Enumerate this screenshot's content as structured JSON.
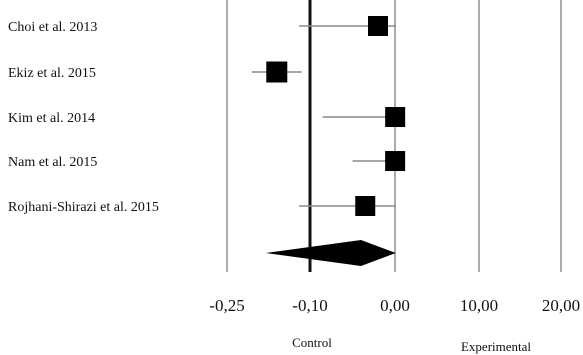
{
  "chart_data": {
    "type": "forest",
    "studies": [
      {
        "label": "Choi et al. 2013",
        "estimate": -0.02,
        "ci_low": -0.12,
        "ci_high": 0.12
      },
      {
        "label": "Ekiz et al. 2015",
        "estimate": -0.16,
        "ci_low": -0.205,
        "ci_high": -0.115
      },
      {
        "label": "Kim et al. 2014",
        "estimate": 0.02,
        "ci_low": -0.085,
        "ci_high": 0.26
      },
      {
        "label": "Nam et al. 2015",
        "estimate": 0.015,
        "ci_low": -0.05,
        "ci_high": 0.12
      },
      {
        "label": "Rojhani-Shirazi et al. 2015",
        "estimate": -0.035,
        "ci_low": -0.12,
        "ci_high": 0.11
      }
    ],
    "pooled": {
      "estimate": -0.04,
      "ci_low": -0.18,
      "ci_high": 0.1
    },
    "x_ticks": [
      "-0,25",
      "-0,10",
      "0,00",
      "10,00",
      "20,00"
    ],
    "x_tick_values": [
      -0.25,
      -0.1,
      0.0,
      10.0,
      20.0
    ],
    "xlabel_left": "Control",
    "xlabel_right": "Experimental",
    "reference_value": -0.1,
    "grid": true
  }
}
